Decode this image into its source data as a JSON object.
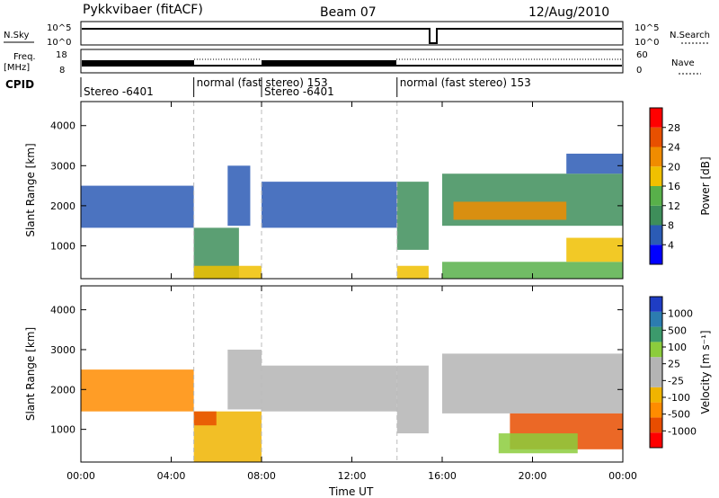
{
  "header": {
    "station": "Pykkvibaer (fitACF)",
    "beam": "Beam 07",
    "date": "12/Aug/2010"
  },
  "status_panels": {
    "nsky_label": "N.Sky",
    "nsky_ticks": [
      "10^5",
      "10^0"
    ],
    "nsearch_label": "N.Search",
    "nsearch_ticks": [
      "10^5",
      "10^0"
    ],
    "freq_label": "Freq.",
    "freq_unit": "[MHz]",
    "freq_ticks": [
      "18",
      "8"
    ],
    "nave_label": "Nave",
    "nave_ticks": [
      "60",
      "0"
    ],
    "cpid_label": "CPID",
    "cpid_segments": [
      {
        "start_h": 0,
        "end_h": 5.0,
        "label": "Stereo -6401"
      },
      {
        "start_h": 5.0,
        "end_h": 8.0,
        "label": "normal (fast stereo) 153"
      },
      {
        "start_h": 8.0,
        "end_h": 14.0,
        "label": "Stereo -6401"
      },
      {
        "start_h": 14.0,
        "end_h": 24.0,
        "label": "normal (fast stereo) 153"
      }
    ]
  },
  "axes": {
    "x_label": "Time UT",
    "x_ticks": [
      "00:00",
      "04:00",
      "08:00",
      "12:00",
      "16:00",
      "20:00",
      "00:00"
    ],
    "y_label": "Slant Range [km]",
    "y_ticks": [
      "1000",
      "2000",
      "3000",
      "4000"
    ]
  },
  "colors": {
    "power_scale": [
      "#0000ff",
      "#2b5bb5",
      "#3e8e5a",
      "#58b04a",
      "#f0c000",
      "#f08c00",
      "#e85000",
      "#ff0000"
    ],
    "velocity_scale": [
      "#ff0000",
      "#e84d00",
      "#ff8c00",
      "#f0b400",
      "#b4b4b4",
      "#b4b4b4",
      "#8ccc3c",
      "#3c9a6c",
      "#2c7cb0",
      "#1f3dc4"
    ],
    "ground_scatter": "#b4b4b4"
  },
  "colorbars": {
    "power": {
      "title": "Power [dB]",
      "ticks": [
        "4",
        "8",
        "12",
        "16",
        "20",
        "24",
        "28"
      ]
    },
    "velocity": {
      "title": "Velocity [m s⁻¹]",
      "ticks": [
        "1000",
        "500",
        "100",
        "25",
        "-25",
        "-100",
        "-500",
        "-1000"
      ]
    }
  },
  "chart_data": [
    {
      "type": "heatmap",
      "panel": "power",
      "x_range_h": [
        0,
        24
      ],
      "y_range_km": [
        180,
        4600
      ],
      "value_range_db": [
        0,
        32
      ],
      "regions": [
        {
          "t0": 0.0,
          "t1": 5.0,
          "r0": 1450,
          "r1": 2500,
          "level_db": 4
        },
        {
          "t0": 5.0,
          "t1": 7.0,
          "r0": 180,
          "r1": 1450,
          "level_db": 10
        },
        {
          "t0": 5.0,
          "t1": 8.0,
          "r0": 180,
          "r1": 500,
          "level_db": 18
        },
        {
          "t0": 6.5,
          "t1": 7.5,
          "r0": 1500,
          "r1": 3000,
          "level_db": 6
        },
        {
          "t0": 8.0,
          "t1": 14.0,
          "r0": 1450,
          "r1": 2600,
          "level_db": 4
        },
        {
          "t0": 14.0,
          "t1": 15.4,
          "r0": 900,
          "r1": 2600,
          "level_db": 10
        },
        {
          "t0": 14.0,
          "t1": 15.4,
          "r0": 180,
          "r1": 500,
          "level_db": 18
        },
        {
          "t0": 16.0,
          "t1": 24.0,
          "r0": 1500,
          "r1": 2800,
          "level_db": 10
        },
        {
          "t0": 16.5,
          "t1": 21.5,
          "r0": 1650,
          "r1": 2100,
          "level_db": 22
        },
        {
          "t0": 16.0,
          "t1": 24.0,
          "r0": 180,
          "r1": 600,
          "level_db": 14
        },
        {
          "t0": 21.5,
          "t1": 24.0,
          "r0": 600,
          "r1": 1200,
          "level_db": 16
        },
        {
          "t0": 21.5,
          "t1": 24.0,
          "r0": 2800,
          "r1": 3300,
          "level_db": 4
        }
      ]
    },
    {
      "type": "heatmap",
      "panel": "velocity",
      "x_range_h": [
        0,
        24
      ],
      "y_range_km": [
        180,
        4600
      ],
      "value_range_ms": [
        -1000,
        1000
      ],
      "regions": [
        {
          "t0": 0.0,
          "t1": 5.0,
          "r0": 1450,
          "r1": 2500,
          "velocity_ms": -100
        },
        {
          "t0": 5.0,
          "t1": 8.0,
          "r0": 180,
          "r1": 1450,
          "velocity_ms": -25
        },
        {
          "t0": 5.0,
          "t1": 6.0,
          "r0": 1100,
          "r1": 1450,
          "velocity_ms": -500
        },
        {
          "t0": 6.5,
          "t1": 8.0,
          "r0": 1500,
          "r1": 3000,
          "velocity_ms": 0
        },
        {
          "t0": 8.0,
          "t1": 14.0,
          "r0": 1450,
          "r1": 2600,
          "velocity_ms": 0
        },
        {
          "t0": 14.0,
          "t1": 15.4,
          "r0": 900,
          "r1": 2600,
          "velocity_ms": 0
        },
        {
          "t0": 16.0,
          "t1": 24.0,
          "r0": 1400,
          "r1": 2900,
          "velocity_ms": 0
        },
        {
          "t0": 19.0,
          "t1": 24.0,
          "r0": 500,
          "r1": 1400,
          "velocity_ms": -500
        },
        {
          "t0": 18.5,
          "t1": 22.0,
          "r0": 400,
          "r1": 900,
          "velocity_ms": 100
        }
      ]
    }
  ]
}
